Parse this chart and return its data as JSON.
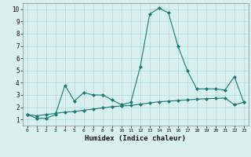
{
  "title": "",
  "xlabel": "Humidex (Indice chaleur)",
  "x": [
    0,
    1,
    2,
    3,
    4,
    5,
    6,
    7,
    8,
    9,
    10,
    11,
    12,
    13,
    14,
    15,
    16,
    17,
    18,
    19,
    20,
    21,
    22,
    23
  ],
  "line1_y": [
    1.4,
    1.1,
    1.1,
    1.4,
    3.8,
    2.5,
    3.2,
    3.0,
    3.0,
    2.6,
    2.2,
    2.4,
    5.3,
    9.6,
    10.1,
    9.7,
    7.0,
    5.0,
    3.5,
    3.5,
    3.5,
    3.4,
    4.5,
    2.4
  ],
  "line2_y": [
    1.4,
    1.3,
    1.4,
    1.5,
    1.6,
    1.65,
    1.75,
    1.85,
    1.95,
    2.05,
    2.1,
    2.15,
    2.25,
    2.35,
    2.45,
    2.5,
    2.55,
    2.6,
    2.65,
    2.7,
    2.72,
    2.75,
    2.2,
    2.4
  ],
  "line_color": "#1a7a6e",
  "bg_color": "#d8f0f0",
  "grid_color": "#b0d8d8",
  "ylim": [
    0.5,
    10.5
  ],
  "xlim": [
    -0.5,
    23.5
  ],
  "yticks": [
    1,
    2,
    3,
    4,
    5,
    6,
    7,
    8,
    9,
    10
  ],
  "xticks": [
    0,
    1,
    2,
    3,
    4,
    5,
    6,
    7,
    8,
    9,
    10,
    11,
    12,
    13,
    14,
    15,
    16,
    17,
    18,
    19,
    20,
    21,
    22,
    23
  ]
}
